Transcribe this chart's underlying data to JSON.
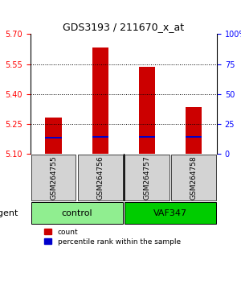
{
  "title": "GDS3193 / 211670_x_at",
  "samples": [
    "GSM264755",
    "GSM264756",
    "GSM264757",
    "GSM264758"
  ],
  "groups": [
    "control",
    "control",
    "VAF347",
    "VAF347"
  ],
  "group_labels": [
    "control",
    "VAF347"
  ],
  "group_colors": [
    "#90EE90",
    "#00CC00"
  ],
  "bar_bottom": 5.1,
  "count_values": [
    5.28,
    5.635,
    5.535,
    5.335
  ],
  "percentile_values": [
    5.175,
    5.178,
    5.178,
    5.178
  ],
  "ylim_left": [
    5.1,
    5.7
  ],
  "yticks_left": [
    5.1,
    5.25,
    5.4,
    5.55,
    5.7
  ],
  "ylim_right": [
    0,
    100
  ],
  "yticks_right": [
    0,
    25,
    50,
    75,
    100
  ],
  "ytick_labels_right": [
    "0",
    "25",
    "50",
    "75",
    "100%"
  ],
  "bar_color_count": "#CC0000",
  "bar_color_pct": "#0000CC",
  "bar_width": 0.35,
  "xlabel_color": "red",
  "ylabel_right_color": "blue",
  "legend_count_label": "count",
  "legend_pct_label": "percentile rank within the sample",
  "agent_label": "agent"
}
